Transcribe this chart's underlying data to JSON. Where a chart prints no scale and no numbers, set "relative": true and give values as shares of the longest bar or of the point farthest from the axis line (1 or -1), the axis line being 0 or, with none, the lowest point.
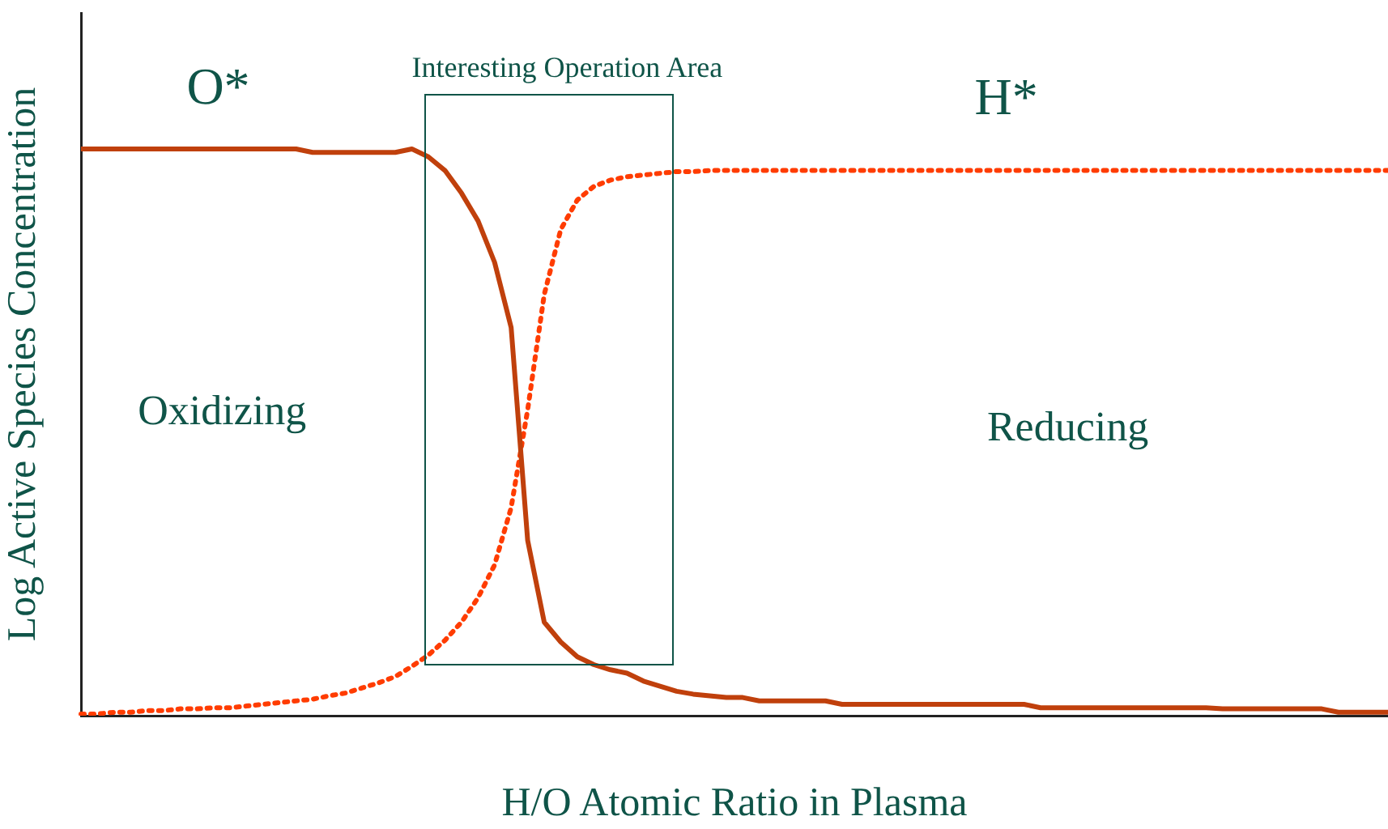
{
  "chart_data": {
    "type": "line",
    "relative": true,
    "xlabel": "H/O Atomic Ratio in Plasma",
    "ylabel": "Log Active Species Concentration",
    "annotations": [
      "Interesting Operation Area",
      "Oxidizing",
      "Reducing"
    ],
    "grid": false,
    "legend": false,
    "marker": "none",
    "categories": [
      null,
      null,
      null,
      null,
      null,
      null,
      null,
      null,
      null,
      null,
      null,
      null,
      null,
      null,
      null,
      null,
      null,
      null,
      null,
      null,
      null,
      null,
      null,
      null,
      null,
      null,
      null,
      null,
      null,
      null,
      null,
      null,
      null,
      null,
      null,
      null,
      null,
      null,
      null,
      null,
      null,
      null,
      null,
      null,
      null,
      null,
      null,
      null,
      null,
      null,
      null,
      null,
      null,
      null,
      null,
      null,
      null,
      null,
      null,
      null,
      null,
      null,
      null,
      null,
      null,
      null,
      null,
      null,
      null,
      null,
      null,
      null,
      null,
      null,
      null,
      null,
      null,
      null,
      null,
      null
    ],
    "series": [
      {
        "name": "O*",
        "color": "#c0400c",
        "line_style": "solid",
        "values": [
          1.0,
          1.0,
          1.0,
          1.0,
          1.0,
          1.0,
          1.0,
          1.0,
          1.0,
          1.0,
          1.0,
          1.0,
          1.0,
          1.0,
          0.994,
          0.994,
          0.994,
          0.994,
          0.994,
          0.994,
          1.0,
          0.986,
          0.962,
          0.922,
          0.873,
          0.8,
          0.685,
          0.309,
          0.165,
          0.13,
          0.104,
          0.09,
          0.081,
          0.075,
          0.061,
          0.052,
          0.043,
          0.038,
          0.035,
          0.032,
          0.032,
          0.026,
          0.026,
          0.026,
          0.026,
          0.026,
          0.02,
          0.02,
          0.02,
          0.02,
          0.02,
          0.02,
          0.02,
          0.02,
          0.02,
          0.02,
          0.02,
          0.02,
          0.014,
          0.014,
          0.014,
          0.014,
          0.014,
          0.014,
          0.014,
          0.014,
          0.014,
          0.014,
          0.014,
          0.012,
          0.012,
          0.012,
          0.012,
          0.012,
          0.012,
          0.012,
          0.006,
          0.006,
          0.006,
          0.006
        ]
      },
      {
        "name": "H*",
        "color": "#ff3c00",
        "line_style": "dotted",
        "values": [
          0.003,
          0.003,
          0.006,
          0.006,
          0.009,
          0.009,
          0.012,
          0.012,
          0.014,
          0.014,
          0.017,
          0.02,
          0.023,
          0.026,
          0.029,
          0.035,
          0.04,
          0.049,
          0.058,
          0.069,
          0.087,
          0.107,
          0.133,
          0.165,
          0.208,
          0.266,
          0.367,
          0.54,
          0.743,
          0.858,
          0.91,
          0.934,
          0.945,
          0.951,
          0.954,
          0.957,
          0.96,
          0.96,
          0.962,
          0.962,
          0.962,
          0.962,
          0.962,
          0.962,
          0.962,
          0.962,
          0.962,
          0.962,
          0.962,
          0.962,
          0.962,
          0.962,
          0.962,
          0.962,
          0.962,
          0.962,
          0.962,
          0.962,
          0.962,
          0.962,
          0.962,
          0.962,
          0.962,
          0.962,
          0.962,
          0.962,
          0.962,
          0.962,
          0.962,
          0.962,
          0.962,
          0.962,
          0.962,
          0.962,
          0.962,
          0.962,
          0.962,
          0.962,
          0.962,
          0.962
        ]
      }
    ]
  }
}
